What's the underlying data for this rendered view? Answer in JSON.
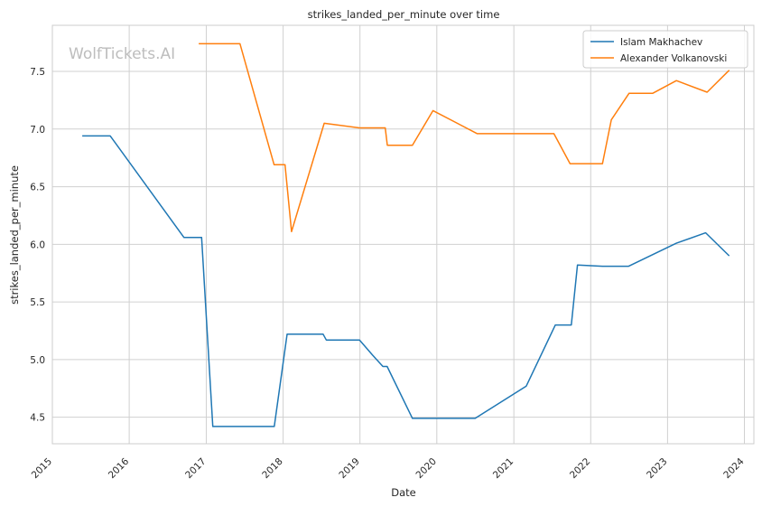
{
  "chart_data": {
    "type": "line",
    "title": "strikes_landed_per_minute over time",
    "xlabel": "Date",
    "ylabel": "strikes_landed_per_minute",
    "watermark": "WolfTickets.AI",
    "xlim": [
      "2015-01-01",
      "2024-02-15"
    ],
    "ylim": [
      4.27,
      7.9
    ],
    "x_ticks": [
      "2015",
      "2016",
      "2017",
      "2018",
      "2019",
      "2020",
      "2021",
      "2022",
      "2023",
      "2024"
    ],
    "y_ticks": [
      "4.5",
      "5.0",
      "5.5",
      "6.0",
      "6.5",
      "7.0",
      "7.5"
    ],
    "grid": true,
    "legend_position": "top-right",
    "series": [
      {
        "name": "Islam Makhachev",
        "color": "#1f77b4",
        "points": [
          [
            "2015-05-23",
            6.94
          ],
          [
            "2015-10-03",
            6.94
          ],
          [
            "2016-09-17",
            6.06
          ],
          [
            "2016-12-10",
            6.06
          ],
          [
            "2017-02-01",
            4.42
          ],
          [
            "2017-11-20",
            4.42
          ],
          [
            "2018-01-20",
            5.22
          ],
          [
            "2018-07-10",
            5.22
          ],
          [
            "2018-07-25",
            5.17
          ],
          [
            "2018-12-30",
            5.17
          ],
          [
            "2019-03-01",
            5.04
          ],
          [
            "2019-04-20",
            4.94
          ],
          [
            "2019-05-10",
            4.94
          ],
          [
            "2019-09-07",
            4.49
          ],
          [
            "2020-07-01",
            4.49
          ],
          [
            "2021-03-01",
            4.77
          ],
          [
            "2021-07-17",
            5.3
          ],
          [
            "2021-10-01",
            5.3
          ],
          [
            "2021-10-30",
            5.82
          ],
          [
            "2022-02-26",
            5.81
          ],
          [
            "2022-06-30",
            5.81
          ],
          [
            "2023-02-12",
            6.01
          ],
          [
            "2023-07-01",
            6.1
          ],
          [
            "2023-10-21",
            5.9
          ]
        ]
      },
      {
        "name": "Alexander Volkanovski",
        "color": "#ff7f0e",
        "points": [
          [
            "2016-11-26",
            7.74
          ],
          [
            "2017-06-10",
            7.74
          ],
          [
            "2017-11-19",
            6.69
          ],
          [
            "2018-01-10",
            6.69
          ],
          [
            "2018-02-10",
            6.11
          ],
          [
            "2018-07-15",
            7.05
          ],
          [
            "2018-12-29",
            7.01
          ],
          [
            "2019-05-01",
            7.01
          ],
          [
            "2019-05-11",
            6.86
          ],
          [
            "2019-09-07",
            6.86
          ],
          [
            "2019-12-14",
            7.16
          ],
          [
            "2020-07-11",
            6.96
          ],
          [
            "2021-07-10",
            6.96
          ],
          [
            "2021-09-25",
            6.7
          ],
          [
            "2022-02-26",
            6.7
          ],
          [
            "2022-04-09",
            7.08
          ],
          [
            "2022-07-02",
            7.31
          ],
          [
            "2022-10-22",
            7.31
          ],
          [
            "2023-02-12",
            7.42
          ],
          [
            "2023-07-08",
            7.32
          ],
          [
            "2023-10-21",
            7.51
          ]
        ]
      }
    ]
  }
}
